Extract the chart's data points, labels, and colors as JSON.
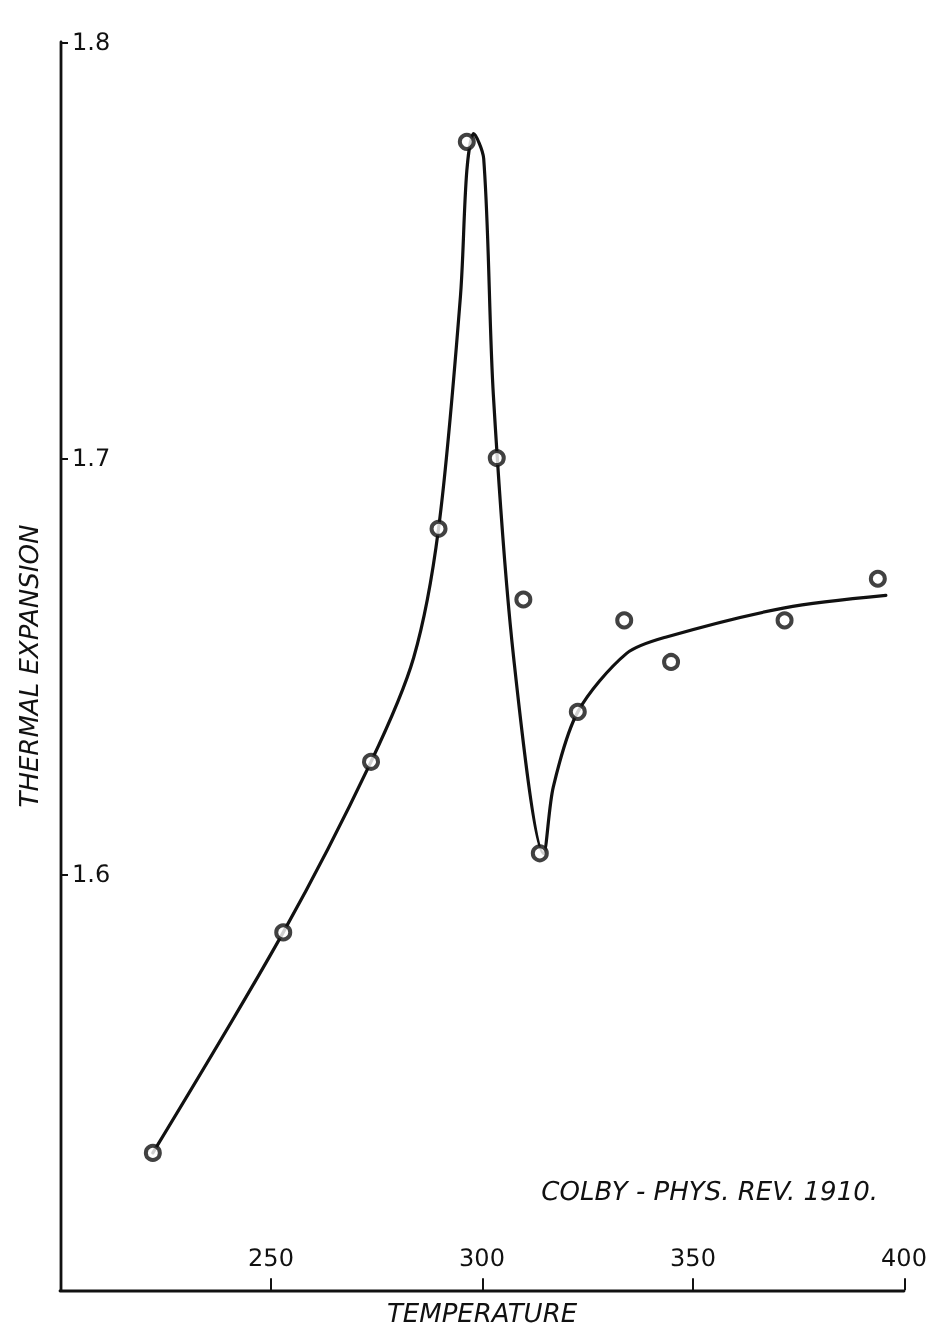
{
  "chart_data": {
    "type": "scatter",
    "xlabel": "TEMPERATURE",
    "ylabel": "THERMAL EXPANSION",
    "annotations": [
      "COLBY - PHYS. REV. 1910."
    ],
    "xlim": [
      200,
      400
    ],
    "xticks": [
      250,
      300,
      350,
      400
    ],
    "ylim": [
      1.5,
      1.8
    ],
    "yticks": [
      1.6,
      1.7,
      1.8
    ],
    "grid": false,
    "marker": "circle",
    "series": [
      {
        "type": "line",
        "marker": "none",
        "color": "#111111",
        "x": [
          222,
          252.9,
          273.7,
          283.8,
          289.7,
          294.9,
          296.4,
          298,
          300.4,
          302.7,
          307.5,
          314.6,
          316.9,
          322.7,
          334.2,
          343.7,
          371.7,
          395.7
        ],
        "values": [
          1.533,
          1.586,
          1.627,
          1.652,
          1.683,
          1.739,
          1.769,
          1.778,
          1.772,
          1.715,
          1.652,
          1.605,
          1.621,
          1.639,
          1.653,
          1.657,
          1.664,
          1.667
        ]
      },
      {
        "color": "#111111",
        "x": [
          222,
          252.9,
          273.7,
          289.7,
          296.4,
          303.5,
          309.8,
          313.7,
          322.7,
          333.7,
          344.8,
          371.7,
          393.8
        ],
        "values": [
          1.533,
          1.586,
          1.627,
          1.683,
          1.776,
          1.7,
          1.666,
          1.605,
          1.639,
          1.661,
          1.651,
          1.661,
          1.671
        ]
      }
    ]
  }
}
